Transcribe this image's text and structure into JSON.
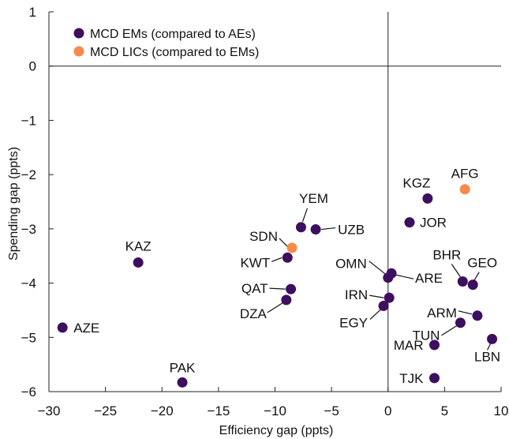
{
  "chart_data": {
    "type": "scatter",
    "title": "",
    "xlabel": "Efficiency gap (ppts)",
    "ylabel": "Spending gap (ppts)",
    "xlim": [
      -30,
      10
    ],
    "ylim": [
      -6,
      1
    ],
    "xticks": [
      -30,
      -25,
      -20,
      -15,
      -10,
      -5,
      0,
      5,
      10
    ],
    "xtick_labels": [
      "−30",
      "−25",
      "−20",
      "−15",
      "−10",
      "−5",
      "0",
      "5",
      "10"
    ],
    "yticks": [
      1,
      0,
      -1,
      -2,
      -3,
      -4,
      -5,
      -6
    ],
    "ytick_labels": [
      "1",
      "0",
      "−1",
      "−2",
      "−3",
      "−4",
      "−5",
      "−6"
    ],
    "reference_lines": {
      "x": 0,
      "y": 0
    },
    "grid": false,
    "legend_position": "top-left",
    "series": [
      {
        "name": "MCD EMs (compared to AEs)",
        "color": "#3d0f5e",
        "points": [
          {
            "label": "AZE",
            "x": -28.8,
            "y": -4.82
          },
          {
            "label": "KAZ",
            "x": -22.1,
            "y": -3.62
          },
          {
            "label": "PAK",
            "x": -18.2,
            "y": -5.83
          },
          {
            "label": "YEM",
            "x": -7.7,
            "y": -2.97
          },
          {
            "label": "UZB",
            "x": -6.4,
            "y": -3.01
          },
          {
            "label": "KWT",
            "x": -8.9,
            "y": -3.53
          },
          {
            "label": "QAT",
            "x": -8.6,
            "y": -4.11
          },
          {
            "label": "DZA",
            "x": -9.0,
            "y": -4.31
          },
          {
            "label": "OMN",
            "x": 0.0,
            "y": -3.9
          },
          {
            "label": "ARE",
            "x": 0.3,
            "y": -3.82
          },
          {
            "label": "IRN",
            "x": 0.1,
            "y": -4.27
          },
          {
            "label": "EGY",
            "x": -0.4,
            "y": -4.42
          },
          {
            "label": "KGZ",
            "x": 3.5,
            "y": -2.44
          },
          {
            "label": "JOR",
            "x": 1.9,
            "y": -2.88
          },
          {
            "label": "BHR",
            "x": 6.6,
            "y": -3.97
          },
          {
            "label": "GEO",
            "x": 7.5,
            "y": -4.03
          },
          {
            "label": "ARM",
            "x": 7.9,
            "y": -4.6
          },
          {
            "label": "TUN",
            "x": 6.4,
            "y": -4.73
          },
          {
            "label": "MAR",
            "x": 4.1,
            "y": -5.14
          },
          {
            "label": "LBN",
            "x": 9.2,
            "y": -5.03
          },
          {
            "label": "TJK",
            "x": 4.1,
            "y": -5.75
          }
        ]
      },
      {
        "name": "MCD LICs (compared to EMs)",
        "color": "#f58a4b",
        "points": [
          {
            "label": "AFG",
            "x": 6.8,
            "y": -2.27
          },
          {
            "label": "SDN",
            "x": -8.5,
            "y": -3.35
          }
        ]
      }
    ]
  }
}
